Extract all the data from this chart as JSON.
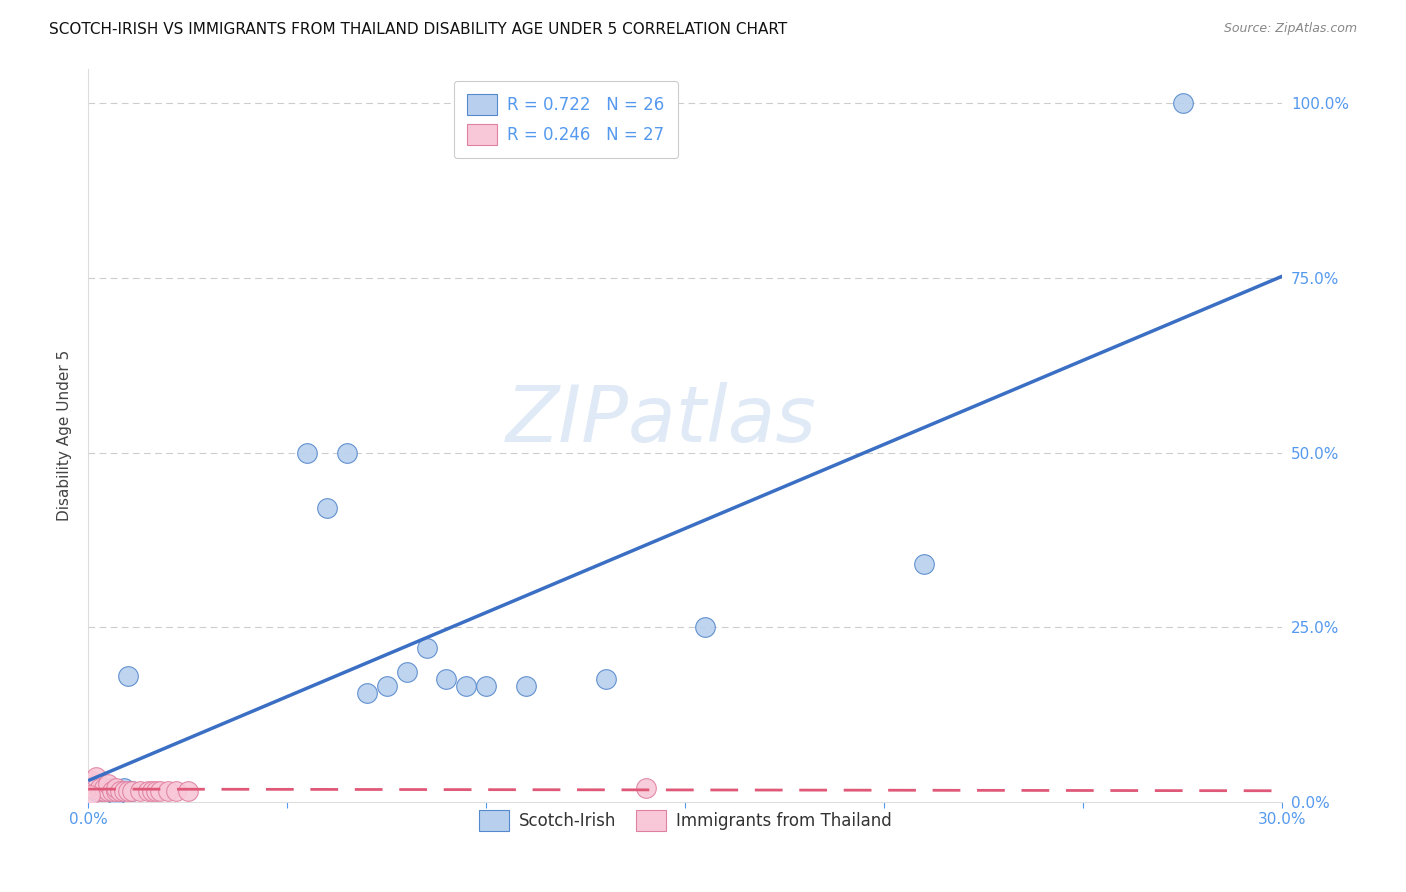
{
  "title": "SCOTCH-IRISH VS IMMIGRANTS FROM THAILAND DISABILITY AGE UNDER 5 CORRELATION CHART",
  "source": "Source: ZipAtlas.com",
  "ylabel": "Disability Age Under 5",
  "xlim": [
    0.0,
    0.3
  ],
  "ylim": [
    0.0,
    1.05
  ],
  "scotch_irish": {
    "color": "#b8d0ee",
    "edge_color": "#5588cc",
    "line_color": "#3a6fc4",
    "R": 0.722,
    "N": 26,
    "x": [
      0.001,
      0.002,
      0.003,
      0.004,
      0.005,
      0.006,
      0.007,
      0.008,
      0.009,
      0.01,
      0.011,
      0.055,
      0.065,
      0.07,
      0.075,
      0.08,
      0.09,
      0.095,
      0.1,
      0.11,
      0.13,
      0.155,
      0.21,
      0.275,
      0.06,
      0.085
    ],
    "y": [
      0.02,
      0.015,
      0.015,
      0.02,
      0.015,
      0.02,
      0.01,
      0.015,
      0.02,
      0.18,
      0.015,
      0.5,
      0.5,
      0.155,
      0.165,
      0.185,
      0.175,
      0.165,
      0.165,
      0.165,
      0.175,
      0.25,
      0.34,
      1.0,
      0.42,
      0.22
    ]
  },
  "thailand": {
    "color": "#f8c8d8",
    "edge_color": "#e080a0",
    "line_color": "#e05878",
    "R": 0.246,
    "N": 27,
    "x": [
      0.001,
      0.001,
      0.002,
      0.002,
      0.003,
      0.003,
      0.004,
      0.004,
      0.005,
      0.005,
      0.006,
      0.007,
      0.007,
      0.008,
      0.009,
      0.01,
      0.011,
      0.013,
      0.015,
      0.016,
      0.017,
      0.018,
      0.02,
      0.022,
      0.025,
      0.14,
      0.0005
    ],
    "y": [
      0.02,
      0.03,
      0.025,
      0.035,
      0.015,
      0.02,
      0.015,
      0.02,
      0.015,
      0.025,
      0.015,
      0.015,
      0.02,
      0.015,
      0.015,
      0.015,
      0.015,
      0.015,
      0.015,
      0.015,
      0.015,
      0.015,
      0.015,
      0.015,
      0.015,
      0.02,
      0.01
    ]
  },
  "watermark": "ZIPatlas",
  "background_color": "#ffffff",
  "grid_color": "#cccccc",
  "tick_color": "#5599ee",
  "legend_labels": [
    "Scotch-Irish",
    "Immigrants from Thailand"
  ],
  "title_fontsize": 11,
  "source_fontsize": 9,
  "axis_fontsize": 11
}
